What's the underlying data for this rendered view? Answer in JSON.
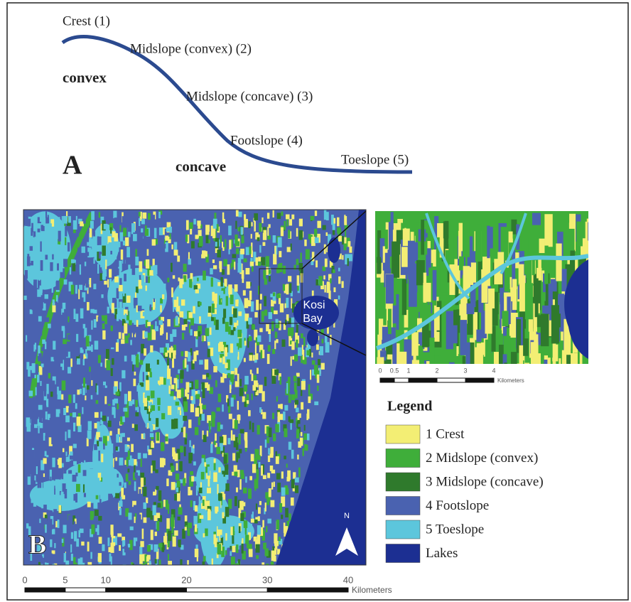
{
  "panel_a": {
    "label": "A",
    "positions": [
      "Crest (1)",
      "Midslope (convex) (2)",
      "Midslope (concave) (3)",
      "Footslope (4)",
      "Toeslope (5)"
    ],
    "convex": "convex",
    "concave": "concave"
  },
  "panel_b": {
    "label": "B",
    "place": [
      "Kosi",
      "Bay"
    ],
    "north": "N",
    "scale": {
      "ticks": [
        0,
        5,
        10,
        20,
        30,
        40
      ],
      "unit": "Kilometers"
    },
    "inset_scale": {
      "ticks": [
        0,
        0.5,
        1,
        2,
        3,
        4
      ],
      "unit": "Kilometers"
    }
  },
  "legend": {
    "title": "Legend",
    "items": [
      {
        "label": "1 Crest",
        "color": "#f3ee74"
      },
      {
        "label": "2 Midslope (convex)",
        "color": "#3fae3a"
      },
      {
        "label": "3 Midslope (concave)",
        "color": "#2f7a2c"
      },
      {
        "label": "4 Footslope",
        "color": "#4a62b0"
      },
      {
        "label": "5 Toeslope",
        "color": "#5cc6dc"
      },
      {
        "label": "Lakes",
        "color": "#1c2f92"
      }
    ]
  }
}
